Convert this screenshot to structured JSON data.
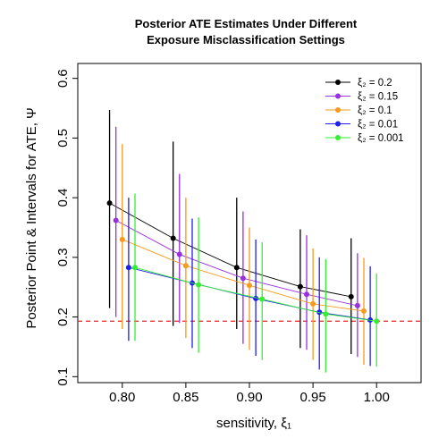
{
  "chart_data": {
    "type": "scatter",
    "title_lines": [
      "Posterior ATE Estimates Under Different",
      "Exposure Misclassification Settings"
    ],
    "xlabel": "sensitivity, ξ₁",
    "ylabel": "Posterior Point & Intervals for ATE, Ψ",
    "xlim": [
      0.765,
      1.035
    ],
    "ylim": [
      0.09,
      0.625
    ],
    "x_ticks": [
      0.8,
      0.85,
      0.9,
      0.95,
      1.0
    ],
    "x_tick_labels": [
      "0.80",
      "0.85",
      "0.90",
      "0.95",
      "1.00"
    ],
    "y_ticks": [
      0.1,
      0.2,
      0.3,
      0.4,
      0.5,
      0.6
    ],
    "y_tick_labels": [
      "0.1",
      "0.2",
      "0.3",
      "0.4",
      "0.5",
      "0.6"
    ],
    "reference_line": {
      "y": 0.193,
      "color": "#ee2222",
      "style": "dashed"
    },
    "legend_position": "top-right",
    "series": [
      {
        "name": "ξ₂ = 0.2",
        "color": "#000000",
        "x": [
          0.79,
          0.84,
          0.89,
          0.94,
          0.98
        ],
        "y": [
          0.391,
          0.332,
          0.283,
          0.251,
          0.234
        ],
        "lower": [
          0.215,
          0.185,
          0.18,
          0.148,
          0.138
        ],
        "upper": [
          0.547,
          0.494,
          0.4,
          0.347,
          0.332
        ]
      },
      {
        "name": "ξ₂ = 0.15",
        "color": "#9a2fe0",
        "x": [
          0.795,
          0.845,
          0.895,
          0.945,
          0.985
        ],
        "y": [
          0.362,
          0.305,
          0.265,
          0.238,
          0.219
        ],
        "lower": [
          0.2,
          0.19,
          0.155,
          0.145,
          0.133
        ],
        "upper": [
          0.519,
          0.44,
          0.377,
          0.337,
          0.307
        ]
      },
      {
        "name": "ξ₂ = 0.1",
        "color": "#f59a1e",
        "x": [
          0.8,
          0.85,
          0.9,
          0.95,
          0.99
        ],
        "y": [
          0.33,
          0.286,
          0.253,
          0.222,
          0.21
        ],
        "lower": [
          0.18,
          0.165,
          0.145,
          0.128,
          0.12
        ],
        "upper": [
          0.49,
          0.4,
          0.35,
          0.315,
          0.299
        ]
      },
      {
        "name": "ξ₂ = 0.01",
        "color": "#1f1ff0",
        "x": [
          0.805,
          0.855,
          0.905,
          0.955,
          0.995
        ],
        "y": [
          0.283,
          0.257,
          0.231,
          0.208,
          0.195
        ],
        "lower": [
          0.16,
          0.148,
          0.135,
          0.112,
          0.118
        ],
        "upper": [
          0.4,
          0.365,
          0.33,
          0.3,
          0.285
        ]
      },
      {
        "name": "ξ₂ = 0.001",
        "color": "#33ee33",
        "x": [
          0.81,
          0.86,
          0.91,
          0.96,
          1.0
        ],
        "y": [
          0.283,
          0.254,
          0.23,
          0.205,
          0.193
        ],
        "lower": [
          0.16,
          0.14,
          0.128,
          0.107,
          0.117
        ],
        "upper": [
          0.407,
          0.367,
          0.325,
          0.297,
          0.273
        ]
      }
    ]
  }
}
